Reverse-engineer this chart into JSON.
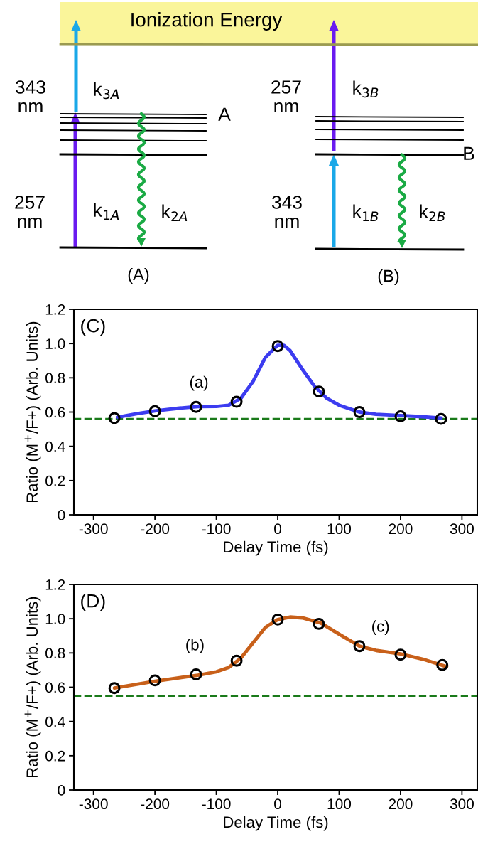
{
  "chart_data": [
    {
      "type": "other",
      "annotations": [
        "Ionization Energy",
        "343\nnm",
        "k$_{3A}$",
        "A",
        "257\nnm",
        "k$_{1A}$",
        "k$_{2A}$",
        "(A)",
        "257\nnm",
        "k$_{3B}$",
        "B",
        "343\nnm",
        "k$_{1B}$",
        "k$_{2B}$",
        "(B)"
      ]
    },
    {
      "type": "scatter",
      "xlabel": "Delay Time (fs)",
      "ylabel": "Ratio (M$^{+}$/F+) (Arb. Units)",
      "xlim": [
        -332,
        325
      ],
      "ylim": [
        0,
        1.2
      ],
      "xticks": [
        -300,
        -200,
        -100,
        0,
        100,
        200,
        300
      ],
      "yticks": [
        0,
        0.2,
        0.4,
        0.6,
        0.8,
        {
          "value": 1.0,
          "label": "1.0"
        },
        1.2
      ],
      "annotations": [
        "(C)",
        "(a)"
      ],
      "ref_lines": [
        {
          "axis": "y",
          "value": 0.56,
          "color": "#1a7a1a",
          "line_style": "dashed"
        }
      ],
      "series": [
        {
          "type": "line",
          "color": "#3c3cf0",
          "x": [
            -260,
            -230,
            -200,
            -160,
            -130,
            -100,
            -80,
            -60,
            -40,
            -20,
            0,
            10,
            20,
            40,
            60,
            80,
            100,
            133,
            160,
            200,
            230,
            266
          ],
          "values": [
            0.57,
            0.59,
            0.607,
            0.623,
            0.632,
            0.633,
            0.64,
            0.68,
            0.78,
            0.92,
            0.99,
            0.99,
            0.96,
            0.85,
            0.75,
            0.68,
            0.64,
            0.6,
            0.587,
            0.58,
            0.574,
            0.565
          ]
        },
        {
          "type": "scatter",
          "color": "#000000",
          "marker": "circle",
          "x": [
            -266,
            -200,
            -133,
            -67,
            0,
            67,
            133,
            200,
            266
          ],
          "values": [
            0.565,
            0.605,
            0.63,
            0.66,
            0.985,
            0.72,
            0.6,
            0.575,
            0.56
          ]
        }
      ]
    },
    {
      "type": "scatter",
      "xlabel": "Delay Time (fs)",
      "ylabel": "Ratio (M$^{+}$/F+) (Arb. Units)",
      "xlim": [
        -332,
        325
      ],
      "ylim": [
        0,
        1.2
      ],
      "xticks": [
        -300,
        -200,
        -100,
        0,
        100,
        200,
        300
      ],
      "yticks": [
        0,
        0.2,
        0.4,
        0.6,
        0.8,
        {
          "value": 1.0,
          "label": "1.0"
        },
        1.2
      ],
      "annotations": [
        "(D)",
        "(b)",
        "(c)"
      ],
      "ref_lines": [
        {
          "axis": "y",
          "value": 0.55,
          "color": "#1a7a1a",
          "line_style": "dashed"
        }
      ],
      "series": [
        {
          "type": "line",
          "color": "#c8601a",
          "x": [
            -266,
            -200,
            -130,
            -100,
            -80,
            -60,
            -40,
            -20,
            0,
            20,
            40,
            70,
            100,
            133,
            160,
            200,
            240,
            275
          ],
          "values": [
            0.595,
            0.635,
            0.67,
            0.69,
            0.715,
            0.77,
            0.86,
            0.95,
            0.995,
            1.01,
            1.005,
            0.975,
            0.91,
            0.84,
            0.815,
            0.795,
            0.76,
            0.72
          ]
        },
        {
          "type": "scatter",
          "color": "#000000",
          "marker": "circle",
          "x": [
            -266,
            -200,
            -133,
            -67,
            0,
            67,
            133,
            200,
            268
          ],
          "values": [
            0.595,
            0.64,
            0.675,
            0.755,
            0.995,
            0.97,
            0.84,
            0.79,
            0.73
          ]
        }
      ]
    }
  ]
}
